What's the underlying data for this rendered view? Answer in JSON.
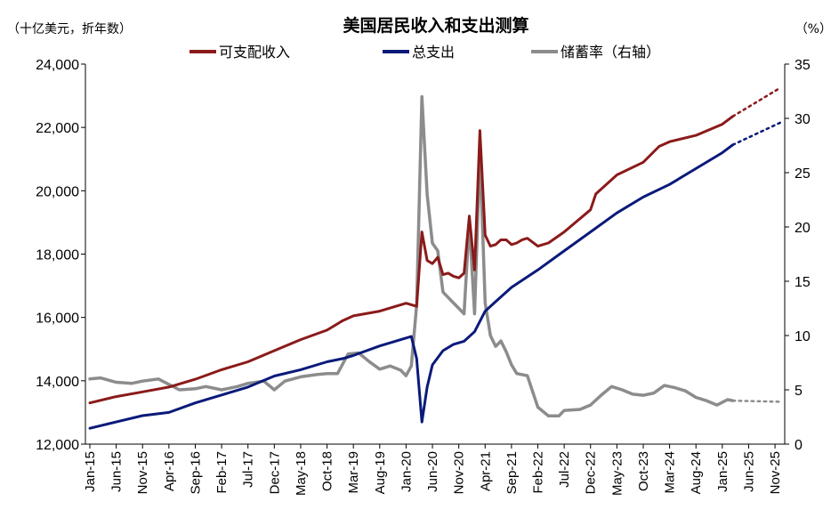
{
  "chart_data": {
    "type": "line",
    "title": "美国居民收入和支出测算",
    "left_unit": "（十亿美元，折年数）",
    "right_unit": "（%）",
    "y_left": {
      "min": 12000,
      "max": 24000,
      "ticks": [
        "12,000",
        "14,000",
        "16,000",
        "18,000",
        "20,000",
        "22,000",
        "24,000"
      ]
    },
    "y_right": {
      "min": 0,
      "max": 35,
      "ticks": [
        "0",
        "5",
        "10",
        "15",
        "20",
        "25",
        "30",
        "35"
      ]
    },
    "x_tick_labels": [
      "Jan-15",
      "Jun-15",
      "Nov-15",
      "Apr-16",
      "Sep-16",
      "Feb-17",
      "Jul-17",
      "Dec-17",
      "May-18",
      "Oct-18",
      "Mar-19",
      "Aug-19",
      "Jan-20",
      "Jun-20",
      "Nov-20",
      "Apr-21",
      "Sep-21",
      "Feb-22",
      "Jul-22",
      "Dec-22",
      "May-23",
      "Oct-23",
      "Mar-24",
      "Aug-24",
      "Jan-25",
      "Jun-25",
      "Nov-25"
    ],
    "x_start": "2015-01",
    "legend": [
      "可支配收入",
      "总支出",
      "储蓄率（右轴）"
    ],
    "colors": {
      "income": "#8b1a1a",
      "spending": "#0a1a7a",
      "saving": "#8c8c8c"
    },
    "series": [
      {
        "name": "可支配收入",
        "axis": "left",
        "actual_points": [
          [
            "2015-01",
            13300
          ],
          [
            "2015-06",
            13500
          ],
          [
            "2015-11",
            13650
          ],
          [
            "2016-04",
            13800
          ],
          [
            "2016-09",
            14050
          ],
          [
            "2017-02",
            14350
          ],
          [
            "2017-07",
            14600
          ],
          [
            "2017-12",
            14950
          ],
          [
            "2018-05",
            15300
          ],
          [
            "2018-10",
            15600
          ],
          [
            "2019-01",
            15900
          ],
          [
            "2019-03",
            16050
          ],
          [
            "2019-08",
            16200
          ],
          [
            "2020-01",
            16450
          ],
          [
            "2020-03",
            16350
          ],
          [
            "2020-04",
            18700
          ],
          [
            "2020-05",
            17800
          ],
          [
            "2020-06",
            17700
          ],
          [
            "2020-07",
            17900
          ],
          [
            "2020-08",
            17350
          ],
          [
            "2020-09",
            17400
          ],
          [
            "2020-10",
            17300
          ],
          [
            "2020-11",
            17250
          ],
          [
            "2020-12",
            17400
          ],
          [
            "2021-01",
            19200
          ],
          [
            "2021-02",
            17500
          ],
          [
            "2021-03",
            21900
          ],
          [
            "2021-04",
            18600
          ],
          [
            "2021-05",
            18250
          ],
          [
            "2021-06",
            18300
          ],
          [
            "2021-07",
            18450
          ],
          [
            "2021-08",
            18450
          ],
          [
            "2021-09",
            18300
          ],
          [
            "2021-10",
            18350
          ],
          [
            "2021-11",
            18450
          ],
          [
            "2021-12",
            18500
          ],
          [
            "2022-02",
            18250
          ],
          [
            "2022-04",
            18350
          ],
          [
            "2022-07",
            18700
          ],
          [
            "2022-12",
            19400
          ],
          [
            "2023-01",
            19900
          ],
          [
            "2023-05",
            20500
          ],
          [
            "2023-10",
            20900
          ],
          [
            "2024-01",
            21400
          ],
          [
            "2024-03",
            21550
          ],
          [
            "2024-08",
            21750
          ],
          [
            "2025-01",
            22100
          ],
          [
            "2025-03",
            22350
          ]
        ],
        "forecast_points": [
          [
            "2025-03",
            22350
          ],
          [
            "2025-12",
            23250
          ]
        ]
      },
      {
        "name": "总支出",
        "axis": "left",
        "actual_points": [
          [
            "2015-01",
            12500
          ],
          [
            "2015-06",
            12700
          ],
          [
            "2015-11",
            12900
          ],
          [
            "2016-04",
            13000
          ],
          [
            "2016-09",
            13300
          ],
          [
            "2017-02",
            13550
          ],
          [
            "2017-07",
            13800
          ],
          [
            "2017-12",
            14150
          ],
          [
            "2018-05",
            14350
          ],
          [
            "2018-10",
            14600
          ],
          [
            "2019-01",
            14700
          ],
          [
            "2019-03",
            14800
          ],
          [
            "2019-08",
            15100
          ],
          [
            "2020-01",
            15350
          ],
          [
            "2020-02",
            15400
          ],
          [
            "2020-03",
            14700
          ],
          [
            "2020-04",
            12700
          ],
          [
            "2020-05",
            13800
          ],
          [
            "2020-06",
            14500
          ],
          [
            "2020-08",
            14950
          ],
          [
            "2020-10",
            15150
          ],
          [
            "2020-12",
            15250
          ],
          [
            "2021-02",
            15550
          ],
          [
            "2021-04",
            16200
          ],
          [
            "2021-06",
            16500
          ],
          [
            "2021-09",
            16950
          ],
          [
            "2022-02",
            17500
          ],
          [
            "2022-07",
            18100
          ],
          [
            "2022-12",
            18700
          ],
          [
            "2023-05",
            19300
          ],
          [
            "2023-10",
            19800
          ],
          [
            "2024-03",
            20200
          ],
          [
            "2024-08",
            20700
          ],
          [
            "2025-01",
            21200
          ],
          [
            "2025-03",
            21450
          ]
        ],
        "forecast_points": [
          [
            "2025-03",
            21450
          ],
          [
            "2025-12",
            22150
          ]
        ]
      },
      {
        "name": "储蓄率（右轴）",
        "axis": "right",
        "actual_points": [
          [
            "2015-01",
            6.0
          ],
          [
            "2015-03",
            6.1
          ],
          [
            "2015-06",
            5.7
          ],
          [
            "2015-09",
            5.6
          ],
          [
            "2015-11",
            5.8
          ],
          [
            "2016-02",
            6.0
          ],
          [
            "2016-04",
            5.5
          ],
          [
            "2016-06",
            5.0
          ],
          [
            "2016-09",
            5.1
          ],
          [
            "2016-11",
            5.3
          ],
          [
            "2017-02",
            5.0
          ],
          [
            "2017-05",
            5.3
          ],
          [
            "2017-07",
            5.6
          ],
          [
            "2017-10",
            5.8
          ],
          [
            "2017-12",
            5.0
          ],
          [
            "2018-02",
            5.8
          ],
          [
            "2018-05",
            6.2
          ],
          [
            "2018-08",
            6.4
          ],
          [
            "2018-10",
            6.5
          ],
          [
            "2018-12",
            6.5
          ],
          [
            "2019-02",
            8.3
          ],
          [
            "2019-04",
            8.4
          ],
          [
            "2019-06",
            7.6
          ],
          [
            "2019-08",
            6.9
          ],
          [
            "2019-10",
            7.2
          ],
          [
            "2019-12",
            6.8
          ],
          [
            "2020-01",
            6.3
          ],
          [
            "2020-02",
            7.2
          ],
          [
            "2020-03",
            12.8
          ],
          [
            "2020-04",
            32.0
          ],
          [
            "2020-05",
            23.0
          ],
          [
            "2020-06",
            18.5
          ],
          [
            "2020-07",
            17.8
          ],
          [
            "2020-08",
            14.0
          ],
          [
            "2020-09",
            13.5
          ],
          [
            "2020-10",
            13.0
          ],
          [
            "2020-11",
            12.5
          ],
          [
            "2020-12",
            12.0
          ],
          [
            "2021-01",
            20.5
          ],
          [
            "2021-02",
            12.0
          ],
          [
            "2021-03",
            27.0
          ],
          [
            "2021-04",
            13.0
          ],
          [
            "2021-05",
            10.0
          ],
          [
            "2021-06",
            9.0
          ],
          [
            "2021-07",
            9.5
          ],
          [
            "2021-08",
            8.5
          ],
          [
            "2021-09",
            7.3
          ],
          [
            "2021-10",
            6.5
          ],
          [
            "2021-12",
            6.3
          ],
          [
            "2022-02",
            3.4
          ],
          [
            "2022-04",
            2.6
          ],
          [
            "2022-06",
            2.6
          ],
          [
            "2022-07",
            3.1
          ],
          [
            "2022-10",
            3.2
          ],
          [
            "2022-12",
            3.6
          ],
          [
            "2023-02",
            4.5
          ],
          [
            "2023-04",
            5.3
          ],
          [
            "2023-06",
            5.0
          ],
          [
            "2023-08",
            4.6
          ],
          [
            "2023-10",
            4.5
          ],
          [
            "2023-12",
            4.7
          ],
          [
            "2024-02",
            5.4
          ],
          [
            "2024-04",
            5.2
          ],
          [
            "2024-06",
            4.9
          ],
          [
            "2024-08",
            4.3
          ],
          [
            "2024-10",
            4.0
          ],
          [
            "2024-12",
            3.6
          ],
          [
            "2025-02",
            4.1
          ],
          [
            "2025-03",
            4.0
          ]
        ],
        "forecast_points": [
          [
            "2025-03",
            4.0
          ],
          [
            "2025-12",
            3.9
          ]
        ]
      }
    ]
  }
}
